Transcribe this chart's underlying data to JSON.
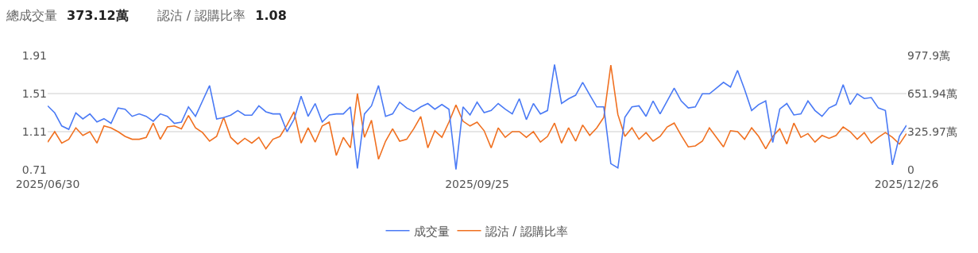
{
  "chart_data": {
    "type": "line",
    "annotations": [
      "總成交量",
      "373.12萬",
      "認沽 / 認購比率",
      "1.08"
    ],
    "categories": [
      "2025/06/30",
      null,
      null,
      null,
      null,
      null,
      null,
      null,
      null,
      null,
      null,
      null,
      null,
      null,
      null,
      null,
      null,
      null,
      null,
      null,
      null,
      null,
      null,
      null,
      null,
      null,
      null,
      null,
      null,
      null,
      null,
      null,
      null,
      null,
      null,
      null,
      null,
      null,
      null,
      null,
      null,
      null,
      null,
      null,
      null,
      null,
      null,
      null,
      null,
      null,
      null,
      null,
      null,
      null,
      null,
      null,
      null,
      null,
      null,
      null,
      null,
      "2025/09/25",
      null,
      null,
      null,
      null,
      null,
      null,
      null,
      null,
      null,
      null,
      null,
      null,
      null,
      null,
      null,
      null,
      null,
      null,
      null,
      null,
      null,
      null,
      null,
      null,
      null,
      null,
      null,
      null,
      null,
      null,
      null,
      null,
      null,
      null,
      null,
      null,
      null,
      null,
      null,
      null,
      null,
      null,
      null,
      null,
      null,
      null,
      null,
      null,
      null,
      null,
      null,
      null,
      null,
      null,
      null,
      null,
      null,
      null,
      null,
      null,
      "2025/12/26"
    ],
    "series": [
      {
        "name": "成交量",
        "color": "#4a7af5",
        "axis": "y2",
        "values": [
          547,
          487,
          375,
          346,
          487,
          435,
          478,
          409,
          437,
          397,
          529,
          518,
          457,
          478,
          457,
          415,
          478,
          457,
          397,
          407,
          538,
          457,
          589,
          721,
          435,
          447,
          467,
          507,
          467,
          467,
          547,
          496,
          478,
          478,
          326,
          431,
          630,
          457,
          567,
          409,
          469,
          478,
          478,
          538,
          11,
          478,
          547,
          721,
          457,
          478,
          578,
          529,
          498,
          538,
          567,
          518,
          558,
          518,
          2,
          538,
          469,
          578,
          489,
          507,
          567,
          518,
          478,
          608,
          429,
          567,
          478,
          507,
          900,
          567,
          608,
          638,
          748,
          641,
          538,
          538,
          52,
          15,
          449,
          538,
          547,
          457,
          589,
          478,
          589,
          699,
          589,
          529,
          538,
          650,
          650,
          699,
          748,
          708,
          851,
          688,
          507,
          558,
          589,
          234,
          520,
          567,
          469,
          478,
          589,
          507,
          457,
          529,
          558,
          728,
          558,
          650,
          610,
          618,
          529,
          507,
          42,
          286,
          380
        ]
      },
      {
        "name": "認沽 / 認購比率",
        "color": "#f07020",
        "values": [
          1.0,
          1.11,
          0.99,
          1.03,
          1.15,
          1.07,
          1.11,
          0.99,
          1.17,
          1.15,
          1.11,
          1.06,
          1.03,
          1.03,
          1.05,
          1.2,
          1.03,
          1.16,
          1.17,
          1.14,
          1.28,
          1.15,
          1.1,
          1.01,
          1.06,
          1.26,
          1.05,
          0.98,
          1.04,
          0.99,
          1.05,
          0.93,
          1.03,
          1.06,
          1.18,
          1.32,
          0.99,
          1.15,
          1.0,
          1.17,
          1.21,
          0.86,
          1.05,
          0.94,
          1.51,
          1.05,
          1.23,
          0.82,
          1.01,
          1.14,
          1.01,
          1.03,
          1.14,
          1.27,
          0.94,
          1.12,
          1.05,
          1.21,
          1.39,
          1.22,
          1.17,
          1.21,
          1.12,
          0.94,
          1.15,
          1.05,
          1.11,
          1.11,
          1.05,
          1.11,
          1.0,
          1.06,
          1.2,
          0.99,
          1.15,
          1.01,
          1.18,
          1.07,
          1.15,
          1.26,
          1.81,
          1.29,
          1.06,
          1.15,
          1.03,
          1.1,
          1.01,
          1.06,
          1.16,
          1.2,
          1.07,
          0.95,
          0.96,
          1.01,
          1.15,
          1.05,
          0.95,
          1.12,
          1.11,
          1.03,
          1.15,
          1.06,
          0.93,
          1.06,
          1.14,
          0.98,
          1.2,
          1.05,
          1.09,
          1.0,
          1.07,
          1.04,
          1.07,
          1.16,
          1.11,
          1.03,
          1.1,
          0.99,
          1.05,
          1.1,
          1.05,
          0.98,
          1.09
        ]
      }
    ],
    "ylim": [
      0.71,
      1.91
    ],
    "yticks": [
      0.71,
      1.11,
      1.51,
      1.91
    ],
    "y2lim": [
      0,
      977.9
    ],
    "y2ticks": [
      0,
      {
        "value": 325.97,
        "label": "325.97萬"
      },
      {
        "value": 651.94,
        "label": "651.94萬"
      },
      {
        "value": 977.9,
        "label": "977.9萬"
      }
    ],
    "grid": "y",
    "legend": "bottom",
    "marker": "none",
    "line_style": "solid"
  }
}
